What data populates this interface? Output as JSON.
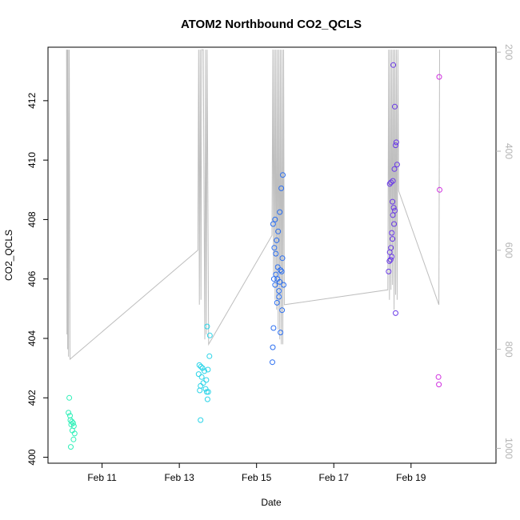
{
  "chart_data": {
    "type": "scatter",
    "title": "ATOM2 Northbound CO2_QCLS",
    "xlabel": "Date",
    "ylabel": "CO2_QCLS",
    "x_ticks": [
      "Feb 11",
      "Feb 13",
      "Feb 15",
      "Feb 17",
      "Feb 19"
    ],
    "x_tick_days": [
      11,
      13,
      15,
      17,
      19
    ],
    "xlim": [
      9.6,
      21.2
    ],
    "ylim": [
      399.8,
      413.8
    ],
    "y_ticks": [
      400,
      402,
      404,
      406,
      408,
      410,
      412
    ],
    "y2_ticks": [
      200,
      400,
      600,
      800,
      1000
    ],
    "y2lim_top_bottom": [
      190,
      1030
    ],
    "colors": {
      "axis": "#000000",
      "pressure_line": "#bebebe",
      "right_axis": "#b3b3b3"
    },
    "points": [
      {
        "d": 10.15,
        "v": 402.0,
        "c": "#2ef0b8"
      },
      {
        "d": 10.13,
        "v": 401.5,
        "c": "#2ef0b8"
      },
      {
        "d": 10.17,
        "v": 401.4,
        "c": "#2ef0b8"
      },
      {
        "d": 10.18,
        "v": 401.25,
        "c": "#2ef0b8"
      },
      {
        "d": 10.22,
        "v": 401.2,
        "c": "#2ef0b8"
      },
      {
        "d": 10.25,
        "v": 401.15,
        "c": "#2ef0b8"
      },
      {
        "d": 10.2,
        "v": 401.1,
        "c": "#2ef0b8"
      },
      {
        "d": 10.27,
        "v": 401.05,
        "c": "#2ef0b8"
      },
      {
        "d": 10.23,
        "v": 400.9,
        "c": "#2ef0b8"
      },
      {
        "d": 10.29,
        "v": 400.8,
        "c": "#2ef0b8"
      },
      {
        "d": 10.26,
        "v": 400.6,
        "c": "#2ef0b8"
      },
      {
        "d": 10.19,
        "v": 400.35,
        "c": "#2ef0b8"
      },
      {
        "d": 13.52,
        "v": 403.1,
        "c": "#2ad4e8"
      },
      {
        "d": 13.56,
        "v": 403.05,
        "c": "#2ad4e8"
      },
      {
        "d": 13.6,
        "v": 403.0,
        "c": "#2ad4e8"
      },
      {
        "d": 13.5,
        "v": 402.8,
        "c": "#2ad4e8"
      },
      {
        "d": 13.65,
        "v": 402.9,
        "c": "#2ad4e8"
      },
      {
        "d": 13.58,
        "v": 402.7,
        "c": "#2ad4e8"
      },
      {
        "d": 13.62,
        "v": 402.5,
        "c": "#2ad4e8"
      },
      {
        "d": 13.55,
        "v": 402.4,
        "c": "#2ad4e8"
      },
      {
        "d": 13.68,
        "v": 402.3,
        "c": "#2ad4e8"
      },
      {
        "d": 13.53,
        "v": 402.25,
        "c": "#2ad4e8"
      },
      {
        "d": 13.71,
        "v": 402.2,
        "c": "#2ad4e8"
      },
      {
        "d": 13.75,
        "v": 402.2,
        "c": "#2ad4e8"
      },
      {
        "d": 13.73,
        "v": 401.95,
        "c": "#2ad4e8"
      },
      {
        "d": 13.78,
        "v": 403.4,
        "c": "#2ad4e8"
      },
      {
        "d": 13.74,
        "v": 402.95,
        "c": "#2ad4e8"
      },
      {
        "d": 13.72,
        "v": 404.4,
        "c": "#2ad4e8"
      },
      {
        "d": 13.79,
        "v": 404.1,
        "c": "#2ad4e8"
      },
      {
        "d": 13.55,
        "v": 401.25,
        "c": "#2ad4e8"
      },
      {
        "d": 13.7,
        "v": 402.6,
        "c": "#2ad4e8"
      },
      {
        "d": 15.43,
        "v": 407.85,
        "c": "#2a6ef0"
      },
      {
        "d": 15.48,
        "v": 408.0,
        "c": "#2a6ef0"
      },
      {
        "d": 15.46,
        "v": 407.05,
        "c": "#2a6ef0"
      },
      {
        "d": 15.5,
        "v": 406.85,
        "c": "#2a6ef0"
      },
      {
        "d": 15.52,
        "v": 407.3,
        "c": "#2a6ef0"
      },
      {
        "d": 15.55,
        "v": 406.4,
        "c": "#2a6ef0"
      },
      {
        "d": 15.45,
        "v": 406.0,
        "c": "#2a6ef0"
      },
      {
        "d": 15.48,
        "v": 405.8,
        "c": "#2a6ef0"
      },
      {
        "d": 15.53,
        "v": 405.2,
        "c": "#2a6ef0"
      },
      {
        "d": 15.58,
        "v": 405.4,
        "c": "#2a6ef0"
      },
      {
        "d": 15.6,
        "v": 405.9,
        "c": "#2a6ef0"
      },
      {
        "d": 15.62,
        "v": 406.3,
        "c": "#2a6ef0"
      },
      {
        "d": 15.65,
        "v": 406.25,
        "c": "#2a6ef0"
      },
      {
        "d": 15.67,
        "v": 406.7,
        "c": "#2a6ef0"
      },
      {
        "d": 15.7,
        "v": 405.8,
        "c": "#2a6ef0"
      },
      {
        "d": 15.56,
        "v": 407.6,
        "c": "#2a6ef0"
      },
      {
        "d": 15.6,
        "v": 408.25,
        "c": "#2a6ef0"
      },
      {
        "d": 15.64,
        "v": 409.05,
        "c": "#2a6ef0"
      },
      {
        "d": 15.68,
        "v": 409.5,
        "c": "#2a6ef0"
      },
      {
        "d": 15.58,
        "v": 405.6,
        "c": "#2a6ef0"
      },
      {
        "d": 15.62,
        "v": 404.2,
        "c": "#2a6ef0"
      },
      {
        "d": 15.66,
        "v": 404.95,
        "c": "#2a6ef0"
      },
      {
        "d": 15.42,
        "v": 403.7,
        "c": "#2a6ef0"
      },
      {
        "d": 15.41,
        "v": 403.2,
        "c": "#2a6ef0"
      },
      {
        "d": 15.44,
        "v": 404.35,
        "c": "#2a6ef0"
      },
      {
        "d": 15.5,
        "v": 406.15,
        "c": "#2a6ef0"
      },
      {
        "d": 15.54,
        "v": 406.0,
        "c": "#2a6ef0"
      },
      {
        "d": 18.45,
        "v": 409.2,
        "c": "#6a3ae8"
      },
      {
        "d": 18.48,
        "v": 409.25,
        "c": "#6a3ae8"
      },
      {
        "d": 18.52,
        "v": 408.6,
        "c": "#6a3ae8"
      },
      {
        "d": 18.55,
        "v": 408.4,
        "c": "#6a3ae8"
      },
      {
        "d": 18.58,
        "v": 408.3,
        "c": "#6a3ae8"
      },
      {
        "d": 18.53,
        "v": 408.15,
        "c": "#6a3ae8"
      },
      {
        "d": 18.56,
        "v": 407.85,
        "c": "#6a3ae8"
      },
      {
        "d": 18.5,
        "v": 407.55,
        "c": "#6a3ae8"
      },
      {
        "d": 18.52,
        "v": 407.35,
        "c": "#6a3ae8"
      },
      {
        "d": 18.48,
        "v": 407.05,
        "c": "#6a3ae8"
      },
      {
        "d": 18.45,
        "v": 406.9,
        "c": "#6a3ae8"
      },
      {
        "d": 18.5,
        "v": 406.75,
        "c": "#6a3ae8"
      },
      {
        "d": 18.47,
        "v": 406.65,
        "c": "#6a3ae8"
      },
      {
        "d": 18.44,
        "v": 406.6,
        "c": "#6a3ae8"
      },
      {
        "d": 18.42,
        "v": 406.25,
        "c": "#6a3ae8"
      },
      {
        "d": 18.54,
        "v": 413.2,
        "c": "#6a3ae8"
      },
      {
        "d": 18.58,
        "v": 411.8,
        "c": "#6a3ae8"
      },
      {
        "d": 18.62,
        "v": 410.6,
        "c": "#6a3ae8"
      },
      {
        "d": 18.6,
        "v": 410.5,
        "c": "#6a3ae8"
      },
      {
        "d": 18.64,
        "v": 409.85,
        "c": "#6a3ae8"
      },
      {
        "d": 18.57,
        "v": 409.7,
        "c": "#6a3ae8"
      },
      {
        "d": 18.53,
        "v": 409.3,
        "c": "#6a3ae8"
      },
      {
        "d": 18.6,
        "v": 404.85,
        "c": "#6a3ae8"
      },
      {
        "d": 19.73,
        "v": 412.8,
        "c": "#d030e0"
      },
      {
        "d": 19.74,
        "v": 409.0,
        "c": "#d030e0"
      },
      {
        "d": 19.71,
        "v": 402.7,
        "c": "#d030e0"
      },
      {
        "d": 19.72,
        "v": 402.45,
        "c": "#d030e0"
      }
    ],
    "pressure_profile": [
      [
        10.08,
        195
      ],
      [
        10.09,
        770
      ],
      [
        10.1,
        195
      ],
      [
        10.11,
        800
      ],
      [
        10.12,
        195
      ],
      [
        10.13,
        815
      ],
      [
        10.15,
        195
      ],
      [
        10.17,
        820
      ],
      [
        13.48,
        600
      ],
      [
        13.5,
        195
      ],
      [
        13.52,
        710
      ],
      [
        13.54,
        195
      ],
      [
        13.56,
        700
      ],
      [
        13.58,
        195
      ],
      [
        13.62,
        195
      ],
      [
        13.66,
        780
      ],
      [
        13.68,
        195
      ],
      [
        13.7,
        770
      ],
      [
        13.72,
        195
      ],
      [
        13.76,
        790
      ],
      [
        15.4,
        570
      ],
      [
        15.42,
        195
      ],
      [
        15.44,
        650
      ],
      [
        15.46,
        195
      ],
      [
        15.48,
        700
      ],
      [
        15.5,
        195
      ],
      [
        15.52,
        720
      ],
      [
        15.54,
        195
      ],
      [
        15.56,
        760
      ],
      [
        15.58,
        195
      ],
      [
        15.6,
        780
      ],
      [
        15.62,
        195
      ],
      [
        15.64,
        790
      ],
      [
        15.66,
        195
      ],
      [
        15.68,
        790
      ],
      [
        15.7,
        195
      ],
      [
        15.72,
        710
      ],
      [
        18.4,
        680
      ],
      [
        18.42,
        195
      ],
      [
        18.44,
        700
      ],
      [
        18.46,
        195
      ],
      [
        18.48,
        680
      ],
      [
        18.5,
        195
      ],
      [
        18.52,
        670
      ],
      [
        18.54,
        195
      ],
      [
        18.56,
        720
      ],
      [
        18.58,
        195
      ],
      [
        18.6,
        690
      ],
      [
        18.62,
        195
      ],
      [
        18.64,
        700
      ],
      [
        18.66,
        195
      ],
      [
        18.68,
        480
      ],
      [
        19.72,
        710
      ],
      [
        19.74,
        195
      ]
    ]
  }
}
